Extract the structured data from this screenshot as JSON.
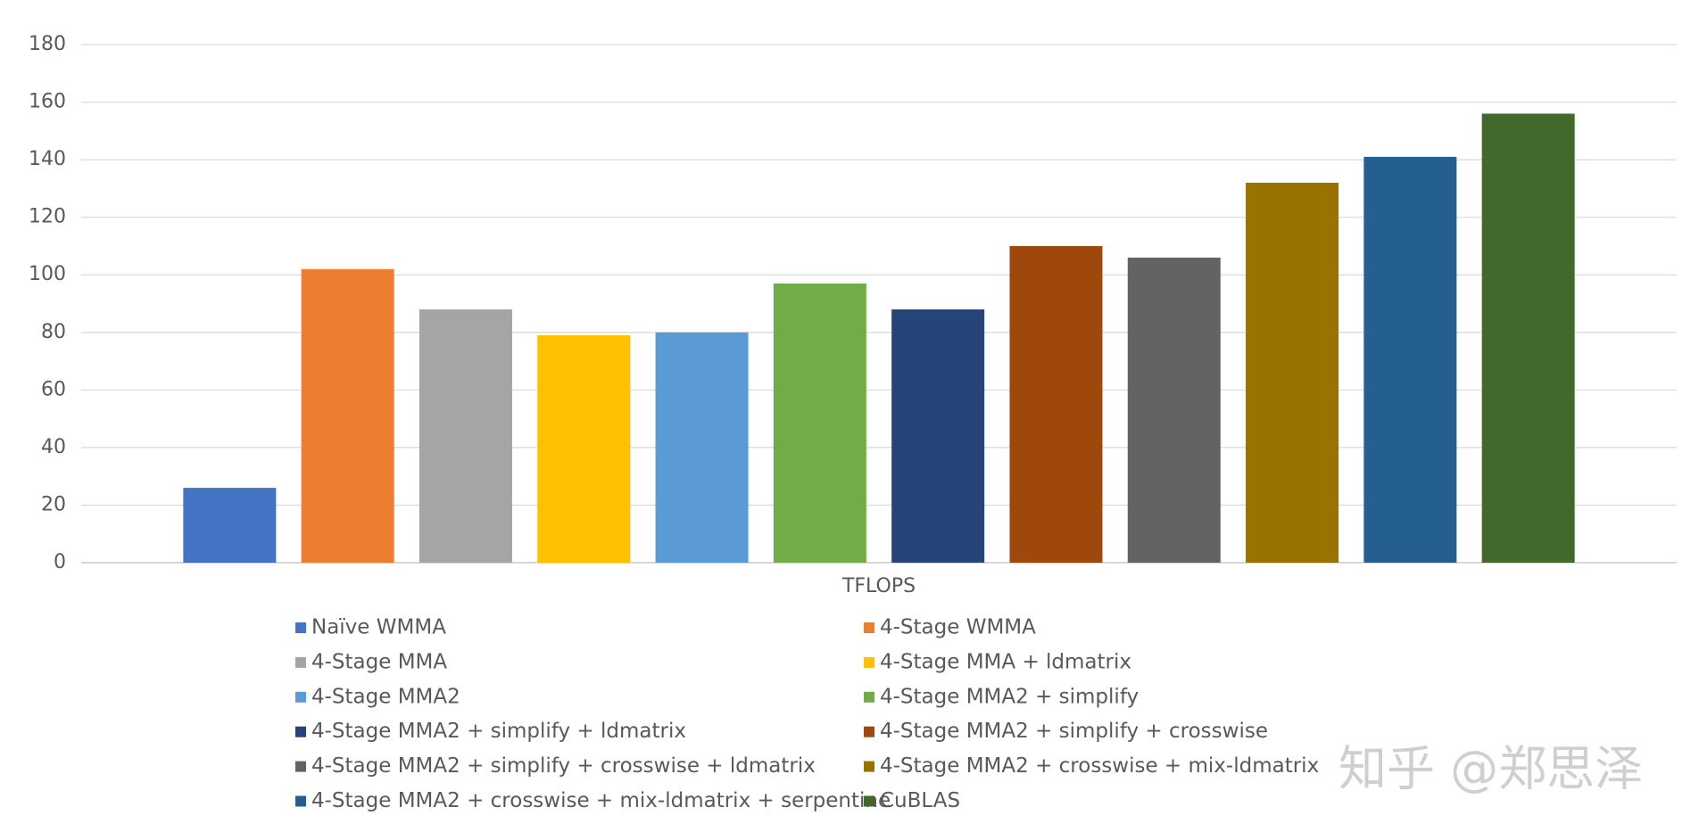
{
  "chart_data": {
    "type": "bar",
    "categories": [
      "TFLOPS"
    ],
    "series": [
      {
        "name": "Naïve WMMA",
        "color": "#4472c4",
        "values": [
          26
        ]
      },
      {
        "name": "4-Stage WMMA",
        "color": "#ed7d31",
        "values": [
          102
        ]
      },
      {
        "name": "4-Stage MMA",
        "color": "#a5a5a5",
        "values": [
          88
        ]
      },
      {
        "name": "4-Stage MMA + ldmatrix",
        "color": "#ffc000",
        "values": [
          79
        ]
      },
      {
        "name": "4-Stage MMA2",
        "color": "#5b9bd5",
        "values": [
          80
        ]
      },
      {
        "name": "4-Stage MMA2 + simplify",
        "color": "#70ad47",
        "values": [
          97
        ]
      },
      {
        "name": "4-Stage MMA2 + simplify + ldmatrix",
        "color": "#264478",
        "values": [
          88
        ]
      },
      {
        "name": "4-Stage MMA2 + simplify + crosswise",
        "color": "#9e480e",
        "values": [
          110
        ]
      },
      {
        "name": "4-Stage MMA2 + simplify + crosswise + ldmatrix",
        "color": "#636363",
        "values": [
          106
        ]
      },
      {
        "name": "4-Stage MMA2 + crosswise + mix-ldmatrix",
        "color": "#997300",
        "values": [
          132
        ]
      },
      {
        "name": "4-Stage MMA2 + crosswise + mix-ldmatrix + serpentine",
        "color": "#255e91",
        "values": [
          141
        ]
      },
      {
        "name": "CuBLAS",
        "color": "#43682b",
        "values": [
          156
        ]
      }
    ],
    "ylim": [
      0,
      180
    ],
    "yticks": [
      0,
      20,
      40,
      60,
      80,
      100,
      120,
      140,
      160,
      180
    ],
    "grid": true,
    "legend": "bottom",
    "watermark": "知乎 @郑思泽"
  }
}
